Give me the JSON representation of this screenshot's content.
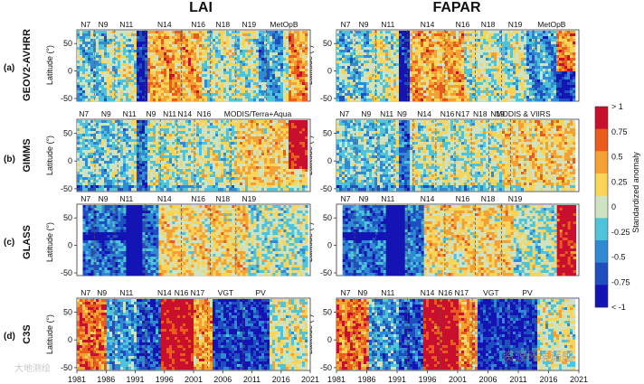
{
  "chart_data": {
    "type": "heatmap",
    "column_titles": [
      "LAI",
      "FAPAR"
    ],
    "y_label": "Latitude (°)",
    "y_ticks": [
      50,
      0,
      -50
    ],
    "ylim": [
      -55,
      75
    ],
    "x_ticks": [
      "1981",
      "1986",
      "1991",
      "1996",
      "2001",
      "2006",
      "2011",
      "2016",
      "2021"
    ],
    "xlim": [
      1981,
      2021
    ],
    "rows": [
      {
        "label": "(a)",
        "dataset": "GEOV2-AVHRR",
        "start_year": 1981,
        "lai_sensors": [
          [
            "N7",
            1982.5
          ],
          [
            "N9",
            1985.5
          ],
          [
            "N11",
            1989.5
          ],
          [
            "N14",
            1996
          ],
          [
            "N16",
            2001.8
          ],
          [
            "N18",
            2006
          ],
          [
            "N19",
            2010.5
          ],
          [
            "MetOpB",
            2016.5
          ]
        ],
        "fapar_sensors": [
          [
            "N7",
            1982.5
          ],
          [
            "N9",
            1985.5
          ],
          [
            "N11",
            1989.5
          ],
          [
            "N14",
            1996
          ],
          [
            "N16",
            2001.8
          ],
          [
            "N18",
            2006
          ],
          [
            "N19",
            2010.5
          ],
          [
            "MetOpB",
            2016.5
          ]
        ]
      },
      {
        "label": "(b)",
        "dataset": "GIMMS",
        "start_year": 1981,
        "lai_sensors": [
          [
            "N7",
            1982.2
          ],
          [
            "N9",
            1986
          ],
          [
            "N11",
            1990
          ],
          [
            "N9",
            1993.7
          ],
          [
            "N11",
            1996.9
          ],
          [
            "N14",
            1999.5
          ],
          [
            "N16",
            2002.8
          ],
          [
            "MODIS/Terra+Aqua",
            2012
          ]
        ],
        "fapar_sensors": [
          [
            "N7",
            1982.3
          ],
          [
            "N9",
            1985.9
          ],
          [
            "N11",
            1989.3
          ],
          [
            "N9",
            1991.8
          ],
          [
            "N14",
            1995.5
          ],
          [
            "N16",
            1999.3
          ],
          [
            "N17",
            2001.8
          ],
          [
            "N18",
            2004.7
          ],
          [
            "N19",
            2007.6
          ],
          [
            "MODIS & VIIRS",
            2011.8
          ]
        ]
      },
      {
        "label": "(c)",
        "dataset": "GLASS",
        "start_year": 1982,
        "lai_sensors": [
          [
            "N7",
            1982.5
          ],
          [
            "N9",
            1985.5
          ],
          [
            "N11",
            1989.5
          ],
          [
            "N14",
            1996
          ],
          [
            "N16",
            2001.8
          ],
          [
            "N18",
            2006
          ],
          [
            "N19",
            2010.5
          ]
        ],
        "fapar_sensors": [
          [
            "N7",
            1982.5
          ],
          [
            "N9",
            1985.5
          ],
          [
            "N11",
            1989.5
          ],
          [
            "N14",
            1996
          ],
          [
            "N16",
            2001.8
          ],
          [
            "N18",
            2006
          ],
          [
            "N19",
            2010.5
          ]
        ]
      },
      {
        "label": "(d)",
        "dataset": "C3S",
        "start_year": 1981,
        "lai_sensors": [
          [
            "N7",
            1982.5
          ],
          [
            "N9",
            1985.3
          ],
          [
            "N11",
            1989.5
          ],
          [
            "N14",
            1996
          ],
          [
            "N16 N17",
            2000.3
          ],
          [
            "VGT",
            2006.5
          ],
          [
            "PV",
            2012.5
          ]
        ],
        "fapar_sensors": [
          [
            "N7",
            1982.5
          ],
          [
            "N9",
            1985.3
          ],
          [
            "N11",
            1989.5
          ],
          [
            "N14",
            1996
          ],
          [
            "N16 N17",
            2000.3
          ],
          [
            "VGT",
            2006.5
          ],
          [
            "PV",
            2012.5
          ]
        ]
      }
    ],
    "colorbar": {
      "label": "Standardized anomaly",
      "tick_labels": [
        "> 1",
        "0.75",
        "0.5",
        "0.25",
        "0",
        "-0.25",
        "-0.5",
        "-0.75",
        "< -1"
      ],
      "colors": [
        "#c8102e",
        "#ea5b1e",
        "#f4a033",
        "#f8d458",
        "#cfe2c2",
        "#4fc3d9",
        "#2f8ad3",
        "#1f4fbf",
        "#1414b4"
      ]
    }
  },
  "watermarks": [
    "大地测绘",
    "资源环境遥感"
  ]
}
